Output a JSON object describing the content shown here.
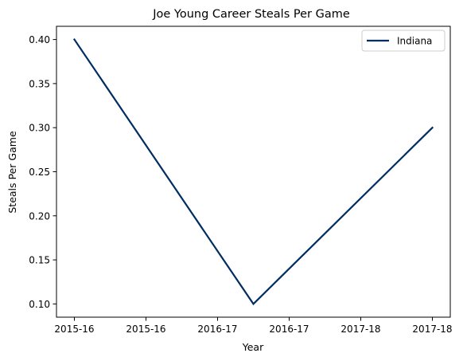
{
  "chart_data": {
    "type": "line",
    "title": "Joe Young  Career Steals Per Game",
    "xlabel": "Year",
    "ylabel": "Steals Per Game",
    "x": [
      0,
      1,
      2
    ],
    "x_tick_labels": [
      "2015-16",
      "2015-16",
      "2016-17",
      "2016-17",
      "2017-18",
      "2017-18"
    ],
    "x_ticks": [
      0,
      0.4,
      0.8,
      1.2,
      1.6,
      2.0
    ],
    "y_ticks": [
      0.1,
      0.15,
      0.2,
      0.25,
      0.3,
      0.35,
      0.4
    ],
    "y_tick_labels": [
      "0.10",
      "0.15",
      "0.20",
      "0.25",
      "0.30",
      "0.35",
      "0.40"
    ],
    "xlim": [
      -0.1,
      2.1
    ],
    "ylim": [
      0.085,
      0.415
    ],
    "grid": false,
    "legend_position": "top-right",
    "series": [
      {
        "name": "Indiana",
        "color": "#002D62",
        "values": [
          0.4,
          0.1,
          0.3
        ]
      }
    ]
  }
}
